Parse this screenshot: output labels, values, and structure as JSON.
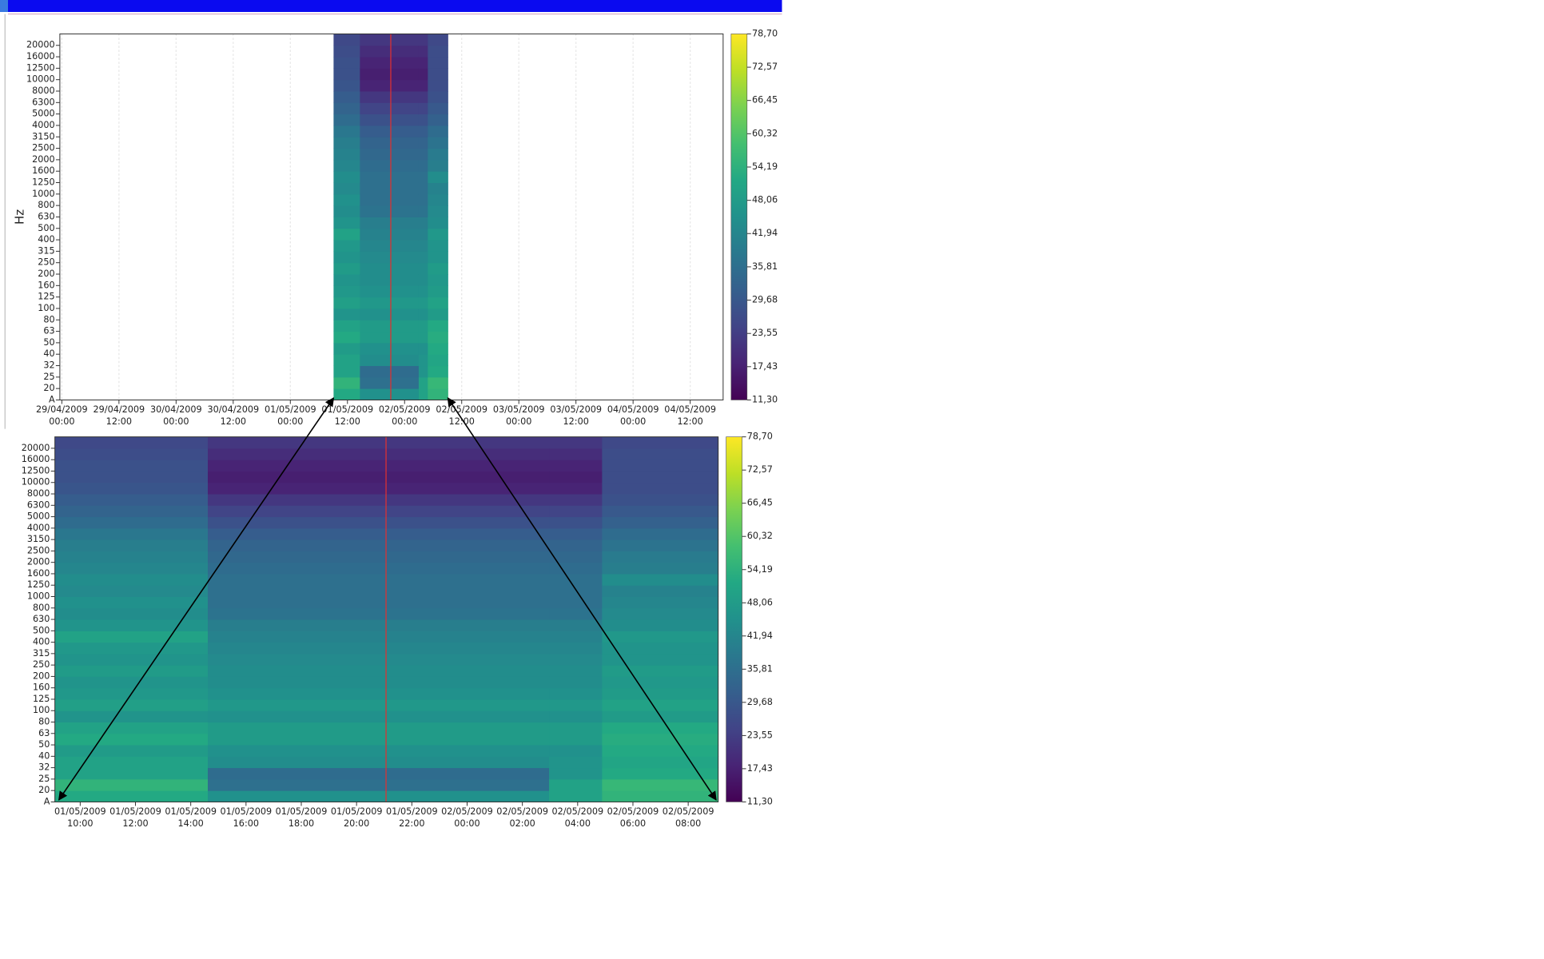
{
  "chart_data": [
    {
      "type": "heatmap",
      "y_label": "Hz",
      "colormap": "viridis",
      "grid": true,
      "cursor_color": "#e03030",
      "categories": [
        "A",
        "20",
        "25",
        "32",
        "40",
        "50",
        "63",
        "80",
        "100",
        "125",
        "160",
        "200",
        "250",
        "315",
        "400",
        "500",
        "630",
        "800",
        "1000",
        "1250",
        "1600",
        "2000",
        "2500",
        "3150",
        "4000",
        "5000",
        "6300",
        "8000",
        "10000",
        "12500",
        "16000",
        "20000"
      ],
      "xlim": [
        "2009-04-28T23:35",
        "2009-05-04T18:55"
      ],
      "xticks": [
        {
          "value": "2009-04-29T00:00",
          "label": "29/04/2009 00:00"
        },
        {
          "value": "2009-04-29T12:00",
          "label": "29/04/2009 12:00"
        },
        {
          "value": "2009-04-30T00:00",
          "label": "30/04/2009 00:00"
        },
        {
          "value": "2009-04-30T12:00",
          "label": "30/04/2009 12:00"
        },
        {
          "value": "2009-05-01T00:00",
          "label": "01/05/2009 00:00"
        },
        {
          "value": "2009-05-01T12:00",
          "label": "01/05/2009 12:00"
        },
        {
          "value": "2009-05-02T00:00",
          "label": "02/05/2009 00:00"
        },
        {
          "value": "2009-05-02T12:00",
          "label": "02/05/2009 12:00"
        },
        {
          "value": "2009-05-03T00:00",
          "label": "03/05/2009 00:00"
        },
        {
          "value": "2009-05-03T12:00",
          "label": "03/05/2009 12:00"
        },
        {
          "value": "2009-05-04T00:00",
          "label": "04/05/2009 00:00"
        },
        {
          "value": "2009-05-04T12:00",
          "label": "04/05/2009 12:00"
        }
      ],
      "x_edges": [
        "2009-05-01T09:05",
        "2009-05-01T14:37",
        "2009-05-02T02:58",
        "2009-05-02T04:53",
        "2009-05-02T09:05"
      ],
      "values": [
        [
          52,
          55,
          50,
          50,
          48,
          52,
          50,
          46,
          49,
          47,
          46,
          48,
          46,
          47,
          50,
          46,
          44,
          45,
          43,
          44,
          42,
          41,
          40,
          38,
          35,
          33,
          31,
          29,
          28,
          28,
          27,
          26
        ],
        [
          45,
          36,
          35,
          44,
          45,
          48,
          48,
          45,
          47,
          45,
          44,
          44,
          43,
          42,
          41,
          40,
          37,
          36,
          36,
          36,
          35,
          34,
          33,
          31,
          28,
          25,
          22,
          18,
          17,
          18,
          20,
          22
        ],
        [
          50,
          50,
          46,
          46,
          45,
          48,
          48,
          45,
          47,
          45,
          44,
          44,
          43,
          42,
          41,
          40,
          37,
          36,
          36,
          36,
          35,
          34,
          33,
          31,
          28,
          25,
          22,
          18,
          17,
          18,
          20,
          22
        ],
        [
          55,
          56,
          52,
          51,
          52,
          53,
          52,
          48,
          50,
          48,
          47,
          48,
          46,
          46,
          47,
          44,
          43,
          42,
          41,
          44,
          40,
          39,
          37,
          35,
          32,
          30,
          28,
          27,
          27,
          27,
          27,
          26
        ]
      ],
      "cursor": "2009-05-01T21:06",
      "zlim": [
        11.3,
        78.7
      ],
      "zticks": [
        {
          "value": 78.7,
          "label": "78,70"
        },
        {
          "value": 72.57,
          "label": "72,57"
        },
        {
          "value": 66.45,
          "label": "66,45"
        },
        {
          "value": 60.32,
          "label": "60,32"
        },
        {
          "value": 54.19,
          "label": "54,19"
        },
        {
          "value": 48.06,
          "label": "48,06"
        },
        {
          "value": 41.94,
          "label": "41,94"
        },
        {
          "value": 35.81,
          "label": "35,81"
        },
        {
          "value": 29.68,
          "label": "29,68"
        },
        {
          "value": 23.55,
          "label": "23,55"
        },
        {
          "value": 17.43,
          "label": "17,43"
        },
        {
          "value": 11.3,
          "label": "11,30"
        }
      ]
    },
    {
      "type": "heatmap",
      "colormap": "viridis",
      "grid": false,
      "cursor_color": "#e03030",
      "categories": [
        "A",
        "20",
        "25",
        "32",
        "40",
        "50",
        "63",
        "80",
        "100",
        "125",
        "160",
        "200",
        "250",
        "315",
        "400",
        "500",
        "630",
        "800",
        "1000",
        "1250",
        "1600",
        "2000",
        "2500",
        "3150",
        "4000",
        "5000",
        "6300",
        "8000",
        "10000",
        "12500",
        "16000",
        "20000"
      ],
      "xlim": [
        "2009-05-01T09:05",
        "2009-05-02T09:05"
      ],
      "xticks": [
        {
          "value": "2009-05-01T10:00",
          "label": "01/05/2009 10:00"
        },
        {
          "value": "2009-05-01T12:00",
          "label": "01/05/2009 12:00"
        },
        {
          "value": "2009-05-01T14:00",
          "label": "01/05/2009 14:00"
        },
        {
          "value": "2009-05-01T16:00",
          "label": "01/05/2009 16:00"
        },
        {
          "value": "2009-05-01T18:00",
          "label": "01/05/2009 18:00"
        },
        {
          "value": "2009-05-01T20:00",
          "label": "01/05/2009 20:00"
        },
        {
          "value": "2009-05-01T22:00",
          "label": "01/05/2009 22:00"
        },
        {
          "value": "2009-05-02T00:00",
          "label": "02/05/2009 00:00"
        },
        {
          "value": "2009-05-02T02:00",
          "label": "02/05/2009 02:00"
        },
        {
          "value": "2009-05-02T04:00",
          "label": "02/05/2009 04:00"
        },
        {
          "value": "2009-05-02T06:00",
          "label": "02/05/2009 06:00"
        },
        {
          "value": "2009-05-02T08:00",
          "label": "02/05/2009 08:00"
        }
      ],
      "x_edges": [
        "2009-05-01T09:05",
        "2009-05-01T14:37",
        "2009-05-02T02:58",
        "2009-05-02T04:53",
        "2009-05-02T09:05"
      ],
      "values": [
        [
          52,
          55,
          50,
          50,
          48,
          52,
          50,
          46,
          49,
          47,
          46,
          48,
          46,
          47,
          50,
          46,
          44,
          45,
          43,
          44,
          42,
          41,
          40,
          38,
          35,
          33,
          31,
          29,
          28,
          28,
          27,
          26
        ],
        [
          45,
          36,
          35,
          44,
          45,
          48,
          48,
          45,
          47,
          45,
          44,
          44,
          43,
          42,
          41,
          40,
          37,
          36,
          36,
          36,
          35,
          34,
          33,
          31,
          28,
          25,
          22,
          18,
          17,
          18,
          20,
          22
        ],
        [
          50,
          50,
          46,
          46,
          45,
          48,
          48,
          45,
          47,
          45,
          44,
          44,
          43,
          42,
          41,
          40,
          37,
          36,
          36,
          36,
          35,
          34,
          33,
          31,
          28,
          25,
          22,
          18,
          17,
          18,
          20,
          22
        ],
        [
          55,
          56,
          52,
          51,
          52,
          53,
          52,
          48,
          50,
          48,
          47,
          48,
          46,
          46,
          47,
          44,
          43,
          42,
          41,
          44,
          40,
          39,
          37,
          35,
          32,
          30,
          28,
          27,
          27,
          27,
          27,
          26
        ]
      ],
      "cursor": "2009-05-01T21:04",
      "zlim": [
        11.3,
        78.7
      ],
      "zticks": [
        {
          "value": 78.7,
          "label": "78,70"
        },
        {
          "value": 72.57,
          "label": "72,57"
        },
        {
          "value": 66.45,
          "label": "66,45"
        },
        {
          "value": 60.32,
          "label": "60,32"
        },
        {
          "value": 54.19,
          "label": "54,19"
        },
        {
          "value": 48.06,
          "label": "48,06"
        },
        {
          "value": 41.94,
          "label": "41,94"
        },
        {
          "value": 35.81,
          "label": "35,81"
        },
        {
          "value": 29.68,
          "label": "29,68"
        },
        {
          "value": 23.55,
          "label": "23,55"
        },
        {
          "value": 17.43,
          "label": "17,43"
        },
        {
          "value": 11.3,
          "label": "11,30"
        }
      ]
    }
  ]
}
